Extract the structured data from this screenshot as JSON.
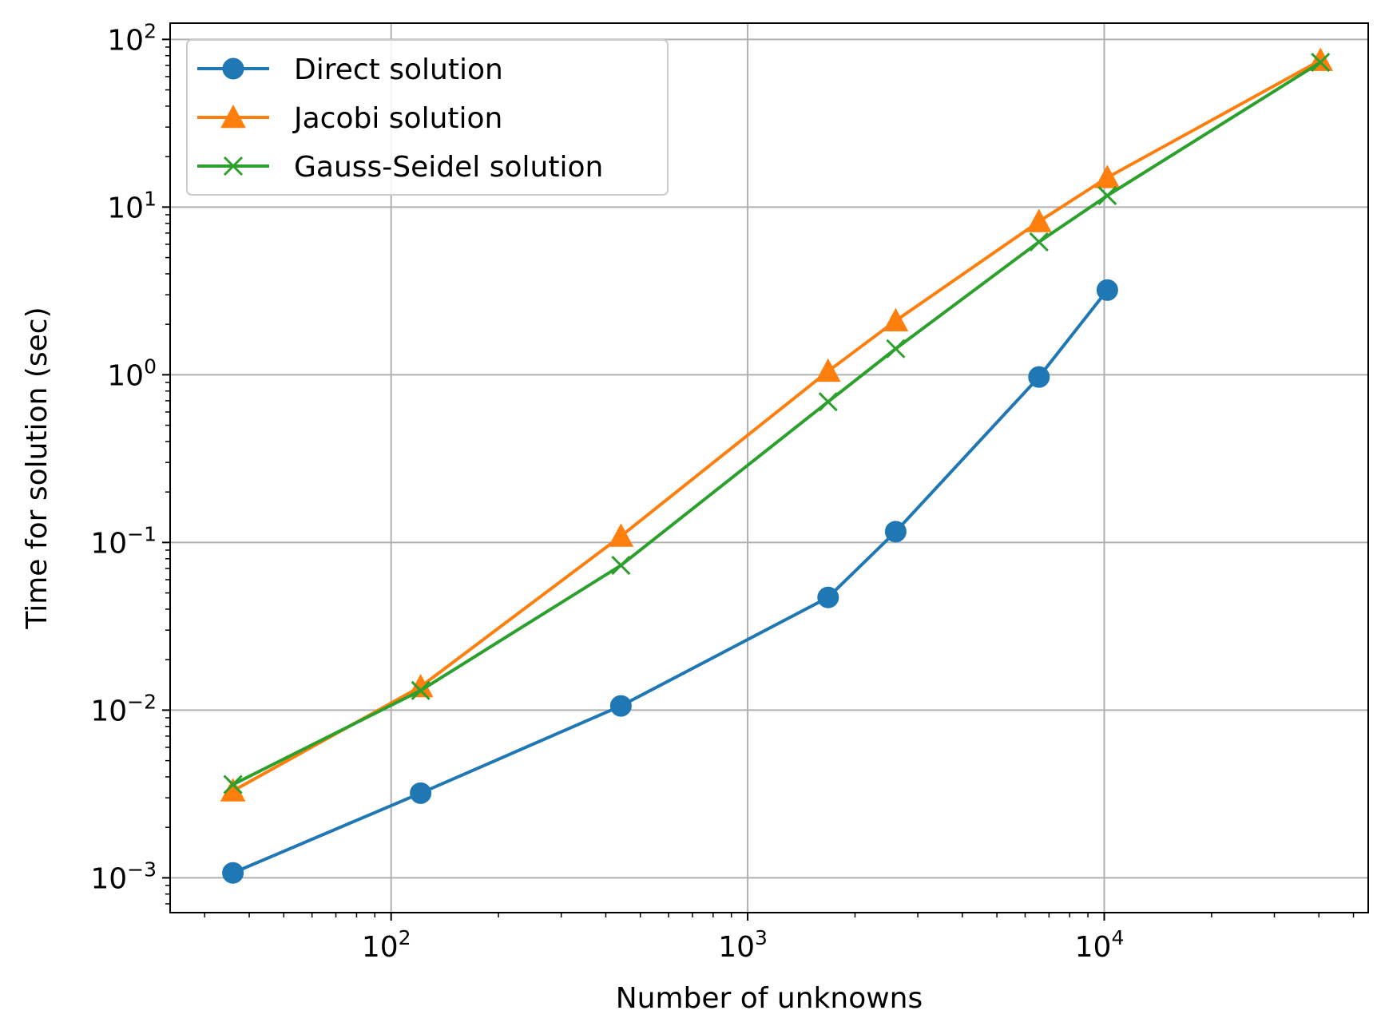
{
  "chart_data": {
    "type": "line",
    "xlabel": "Number of unknowns",
    "ylabel": "Time for solution (sec)",
    "xscale": "log",
    "yscale": "log",
    "xlim": [
      24,
      55000
    ],
    "ylim": [
      0.00062,
      125
    ],
    "grid": true,
    "legend_position": "top-left",
    "x_ticks": [
      {
        "value": 100,
        "base": "10",
        "exp": "2"
      },
      {
        "value": 1000,
        "base": "10",
        "exp": "3"
      },
      {
        "value": 10000,
        "base": "10",
        "exp": "4"
      }
    ],
    "y_ticks": [
      {
        "value": 0.001,
        "base": "10",
        "exp": "−3"
      },
      {
        "value": 0.01,
        "base": "10",
        "exp": "−2"
      },
      {
        "value": 0.1,
        "base": "10",
        "exp": "−1"
      },
      {
        "value": 1,
        "base": "10",
        "exp": "0"
      },
      {
        "value": 10,
        "base": "10",
        "exp": "1"
      },
      {
        "value": 100,
        "base": "10",
        "exp": "2"
      }
    ],
    "series": [
      {
        "name": "Direct solution",
        "color": "#1f77b4",
        "marker": "circle",
        "x": [
          36,
          121,
          441,
          1681,
          2601,
          6561,
          10201
        ],
        "y": [
          0.00107,
          0.0032,
          0.0106,
          0.047,
          0.116,
          0.97,
          3.2
        ]
      },
      {
        "name": "Jacobi solution",
        "color": "#ff7f0e",
        "marker": "triangle",
        "x": [
          36,
          121,
          441,
          1681,
          2601,
          6561,
          10201,
          40401
        ],
        "y": [
          0.0033,
          0.0138,
          0.109,
          1.05,
          2.1,
          8.2,
          15.0,
          75.0
        ]
      },
      {
        "name": "Gauss-Seidel solution",
        "color": "#2ca02c",
        "marker": "x",
        "x": [
          36,
          121,
          441,
          1681,
          2601,
          6561,
          10201,
          40401
        ],
        "y": [
          0.0036,
          0.0131,
          0.073,
          0.69,
          1.43,
          6.2,
          11.7,
          73.0
        ]
      }
    ]
  }
}
